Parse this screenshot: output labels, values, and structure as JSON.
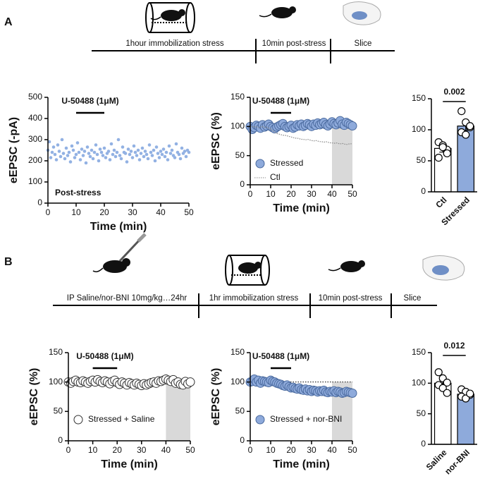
{
  "panels": [
    {
      "label": "A",
      "timeline": [
        "1hour immobilization stress",
        "10min post-stress",
        "Slice"
      ]
    },
    {
      "label": "B",
      "timeline": [
        "IP Saline/nor-BNI 10mg/kg…24hr",
        "1hr immobilization stress",
        "10min post-stress",
        "Slice"
      ]
    }
  ],
  "chart_data": [
    {
      "type": "scatter",
      "ylabel": "eEPSC (-pA)",
      "xlabel": "Time (min)",
      "note": "Post-stress",
      "color": "#92b1e3",
      "annotation": {
        "text": "U-50488 (1μM)",
        "x": [
          10,
          20
        ]
      },
      "xlim": [
        0,
        50
      ],
      "xticks": [
        0,
        10,
        20,
        30,
        40,
        50
      ],
      "ylim": [
        0,
        500
      ],
      "yticks": [
        0,
        100,
        200,
        300,
        400,
        500
      ],
      "x": [
        0,
        0.5,
        1,
        1.5,
        2,
        2.5,
        3,
        3.5,
        4,
        4.5,
        5,
        5.5,
        6,
        6.5,
        7,
        7.5,
        8,
        8.5,
        9,
        9.5,
        10,
        10.5,
        11,
        11.5,
        12,
        12.5,
        13,
        13.5,
        14,
        14.5,
        15,
        15.5,
        16,
        16.5,
        17,
        17.5,
        18,
        18.5,
        19,
        19.5,
        20,
        20.5,
        21,
        21.5,
        22,
        22.5,
        23,
        23.5,
        24,
        24.5,
        25,
        25.5,
        26,
        26.5,
        27,
        27.5,
        28,
        28.5,
        29,
        29.5,
        30,
        30.5,
        31,
        31.5,
        32,
        32.5,
        33,
        33.5,
        34,
        34.5,
        35,
        35.5,
        36,
        36.5,
        37,
        37.5,
        38,
        38.5,
        39,
        39.5,
        40,
        40.5,
        41,
        41.5,
        42,
        42.5,
        43,
        43.5,
        44,
        44.5,
        45,
        45.5,
        46,
        46.5,
        47,
        47.5,
        48,
        48.5,
        49,
        49.5,
        50
      ],
      "values": [
        250,
        290,
        215,
        240,
        265,
        230,
        205,
        275,
        245,
        220,
        300,
        235,
        210,
        260,
        225,
        240,
        195,
        270,
        250,
        215,
        230,
        285,
        240,
        205,
        255,
        225,
        245,
        190,
        265,
        235,
        220,
        250,
        210,
        240,
        275,
        230,
        200,
        255,
        240,
        225,
        260,
        215,
        235,
        245,
        205,
        280,
        230,
        250,
        220,
        240,
        300,
        225,
        210,
        265,
        240,
        235,
        195,
        255,
        230,
        245,
        215,
        270,
        240,
        225,
        250,
        205,
        235,
        260,
        220,
        245,
        230,
        210,
        275,
        240,
        225,
        250,
        200,
        265,
        235,
        215,
        245,
        230,
        255,
        220,
        240,
        205,
        270,
        235,
        250,
        225,
        215,
        280,
        240,
        230,
        210,
        260,
        235,
        245,
        220,
        250,
        240
      ]
    },
    {
      "type": "line",
      "ylabel": "eEPSC (%)",
      "xlabel": "Time (min)",
      "annotation": {
        "text": "U-50488 (1μM)",
        "x": [
          10,
          20
        ]
      },
      "shade": {
        "x": [
          40,
          50
        ],
        "y": [
          0,
          100
        ]
      },
      "xlim": [
        0,
        50
      ],
      "xticks": [
        0,
        10,
        20,
        30,
        40,
        50
      ],
      "ylim": [
        0,
        150
      ],
      "yticks": [
        0,
        50,
        100,
        150
      ],
      "x": [
        0,
        1,
        2,
        3,
        4,
        5,
        6,
        7,
        8,
        9,
        10,
        11,
        12,
        13,
        14,
        15,
        16,
        17,
        18,
        19,
        20,
        21,
        22,
        23,
        24,
        25,
        26,
        27,
        28,
        29,
        30,
        31,
        32,
        33,
        34,
        35,
        36,
        37,
        38,
        39,
        40,
        41,
        42,
        43,
        44,
        45,
        46,
        47,
        48,
        49,
        50
      ],
      "series": [
        {
          "name": "Stressed",
          "style": "markers",
          "color": "#8eaadb",
          "values": [
            100,
            95,
            98,
            102,
            100,
            97,
            103,
            99,
            101,
            104,
            100,
            98,
            96,
            99,
            101,
            103,
            105,
            100,
            98,
            100,
            102,
            97,
            99,
            103,
            101,
            104,
            100,
            102,
            105,
            103,
            100,
            104,
            102,
            106,
            103,
            105,
            107,
            103,
            101,
            104,
            108,
            105,
            103,
            106,
            110,
            104,
            102,
            107,
            105,
            103,
            101
          ]
        },
        {
          "name": "Ctl",
          "style": "dotted",
          "color": "#888888",
          "values": [
            100,
            100,
            99,
            100,
            98,
            99,
            100,
            98,
            99,
            97,
            96,
            93,
            90,
            88,
            87,
            86,
            85,
            85,
            84,
            83,
            82,
            81,
            80,
            80,
            79,
            78,
            78,
            77,
            78,
            77,
            76,
            75,
            76,
            75,
            74,
            74,
            73,
            74,
            73,
            72,
            72,
            71,
            72,
            71,
            70,
            71,
            70,
            69,
            70,
            70,
            71
          ]
        }
      ]
    },
    {
      "type": "bar",
      "categories": [
        "Ctl",
        "Stressed"
      ],
      "colors": [
        "#ffffff",
        "#8eaadb"
      ],
      "values": [
        70,
        106
      ],
      "errors": [
        6,
        7
      ],
      "significance": "0.002",
      "points": [
        [
          80,
          75,
          68,
          55,
          72,
          62
        ],
        [
          130,
          112,
          104,
          96,
          92,
          106
        ]
      ],
      "ylim": [
        0,
        150
      ],
      "yticks": [
        0,
        50,
        100,
        150
      ]
    },
    {
      "type": "line",
      "ylabel": "eEPSC (%)",
      "xlabel": "Time (min)",
      "annotation": {
        "text": "U-50488 (1μM)",
        "x": [
          10,
          20
        ]
      },
      "shade": {
        "x": [
          40,
          50
        ],
        "y": [
          0,
          100
        ]
      },
      "xlim": [
        0,
        50
      ],
      "xticks": [
        0,
        10,
        20,
        30,
        40,
        50
      ],
      "ylim": [
        0,
        150
      ],
      "yticks": [
        0,
        50,
        100,
        150
      ],
      "x": [
        0,
        1,
        2,
        3,
        4,
        5,
        6,
        7,
        8,
        9,
        10,
        11,
        12,
        13,
        14,
        15,
        16,
        17,
        18,
        19,
        20,
        21,
        22,
        23,
        24,
        25,
        26,
        27,
        28,
        29,
        30,
        31,
        32,
        33,
        34,
        35,
        36,
        37,
        38,
        39,
        40,
        41,
        42,
        43,
        44,
        45,
        46,
        47,
        48,
        49,
        50
      ],
      "series": [
        {
          "name": "Stressed +  Saline",
          "style": "markers",
          "color": "#ffffff",
          "values": [
            100,
            98,
            101,
            103,
            100,
            99,
            102,
            100,
            98,
            101,
            103,
            100,
            104,
            101,
            99,
            102,
            100,
            97,
            101,
            103,
            99,
            96,
            100,
            98,
            95,
            99,
            97,
            95,
            98,
            96,
            94,
            97,
            95,
            97,
            99,
            100,
            98,
            102,
            101,
            103,
            105,
            103,
            101,
            104,
            98,
            100,
            96,
            95,
            101,
            97,
            100
          ]
        }
      ]
    },
    {
      "type": "line",
      "ylabel": "eEPSC (%)",
      "xlabel": "Time (min)",
      "annotation": {
        "text": "U-50488 (1μM)",
        "x": [
          10,
          20
        ]
      },
      "shade": {
        "x": [
          40,
          50
        ],
        "y": [
          0,
          100
        ]
      },
      "reference_line": {
        "y": 100,
        "x": [
          10,
          50
        ]
      },
      "xlim": [
        0,
        50
      ],
      "xticks": [
        0,
        10,
        20,
        30,
        40,
        50
      ],
      "ylim": [
        0,
        150
      ],
      "yticks": [
        0,
        50,
        100,
        150
      ],
      "x": [
        0,
        1,
        2,
        3,
        4,
        5,
        6,
        7,
        8,
        9,
        10,
        11,
        12,
        13,
        14,
        15,
        16,
        17,
        18,
        19,
        20,
        21,
        22,
        23,
        24,
        25,
        26,
        27,
        28,
        29,
        30,
        31,
        32,
        33,
        34,
        35,
        36,
        37,
        38,
        39,
        40,
        41,
        42,
        43,
        44,
        45,
        46,
        47,
        48,
        49,
        50
      ],
      "series": [
        {
          "name": "Stressed + nor-BNI",
          "style": "markers",
          "color": "#8eaadb",
          "values": [
            100,
            101,
            105,
            100,
            103,
            98,
            102,
            101,
            100,
            99,
            103,
            101,
            100,
            98,
            97,
            96,
            94,
            93,
            95,
            92,
            90,
            91,
            89,
            88,
            90,
            87,
            86,
            88,
            85,
            87,
            84,
            86,
            85,
            83,
            85,
            84,
            86,
            83,
            82,
            84,
            83,
            85,
            82,
            84,
            83,
            81,
            82,
            84,
            83,
            82,
            81
          ]
        }
      ]
    },
    {
      "type": "bar",
      "categories": [
        "Saline",
        "nor-BNI"
      ],
      "colors": [
        "#ffffff",
        "#8eaadb"
      ],
      "values": [
        100,
        82
      ],
      "errors": [
        5,
        3
      ],
      "significance": "0.012",
      "points": [
        [
          118,
          108,
          101,
          97,
          92,
          84
        ],
        [
          90,
          86,
          81,
          78,
          75,
          83
        ]
      ],
      "ylim": [
        0,
        150
      ],
      "yticks": [
        0,
        50,
        100,
        150
      ]
    }
  ]
}
